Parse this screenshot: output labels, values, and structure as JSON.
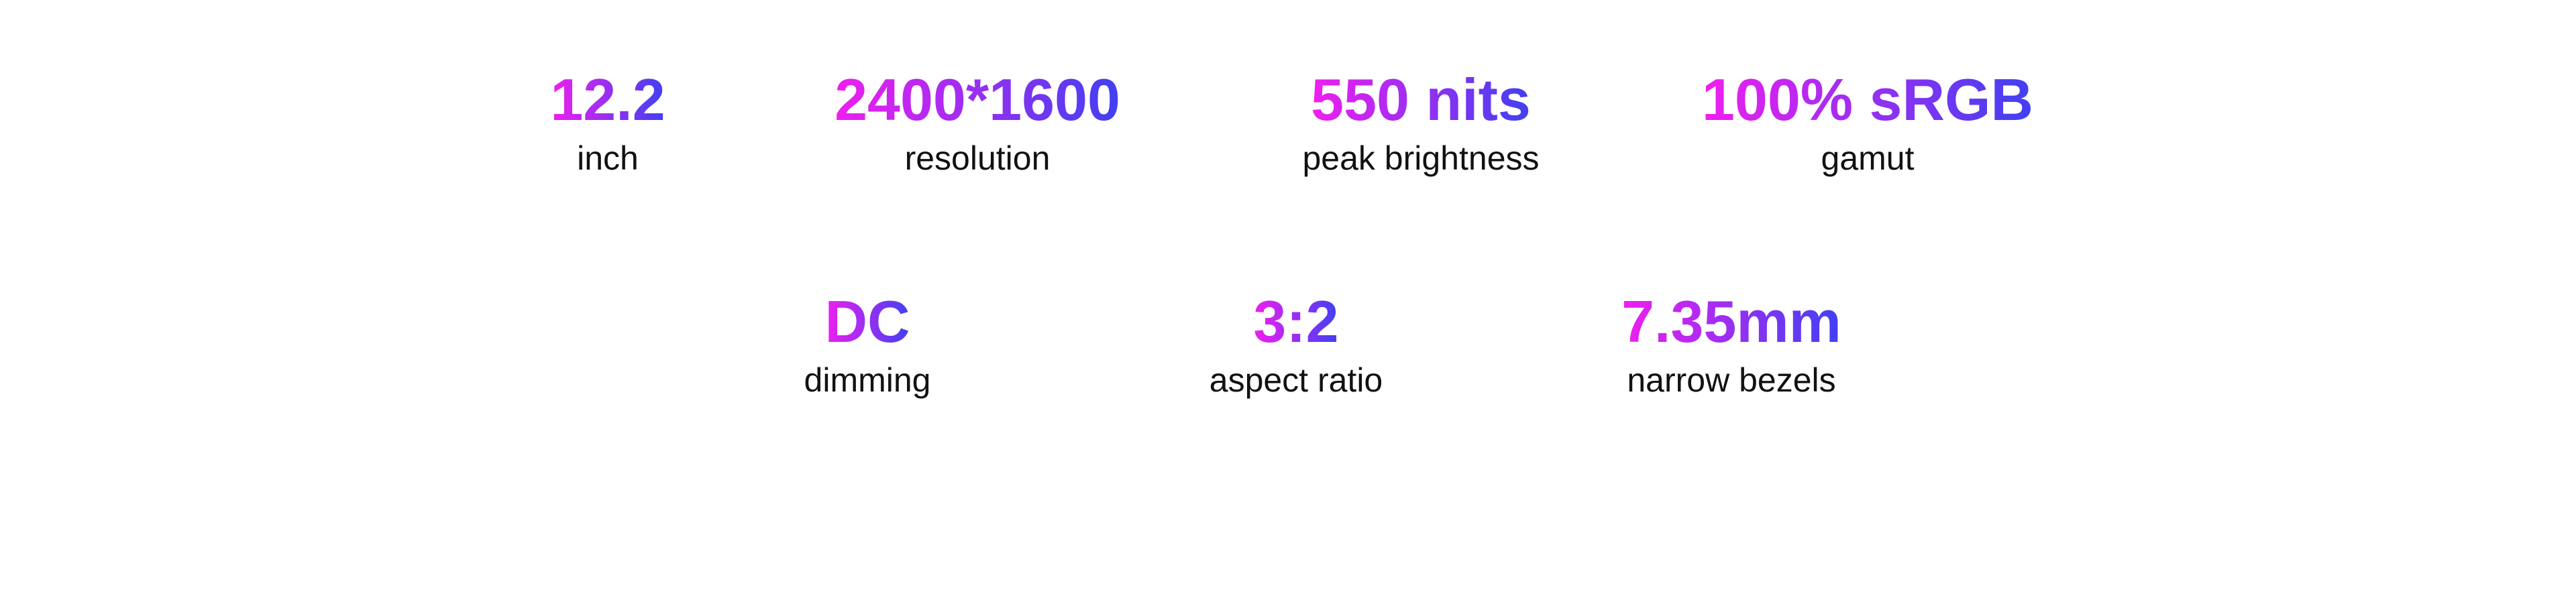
{
  "colors": {
    "gradient_start": "#f01ef0",
    "gradient_end": "#4040f2",
    "label": "#111111"
  },
  "row1": [
    {
      "value": "12.2",
      "label": "inch"
    },
    {
      "value": "2400*1600",
      "label": "resolution"
    },
    {
      "value": "550 nits",
      "label": "peak brightness"
    },
    {
      "value": "100% sRGB",
      "label": "gamut"
    }
  ],
  "row2": [
    {
      "value": "DC",
      "label": "dimming"
    },
    {
      "value": "3:2",
      "label": "aspect ratio"
    },
    {
      "value": "7.35mm",
      "label": "narrow bezels"
    }
  ]
}
